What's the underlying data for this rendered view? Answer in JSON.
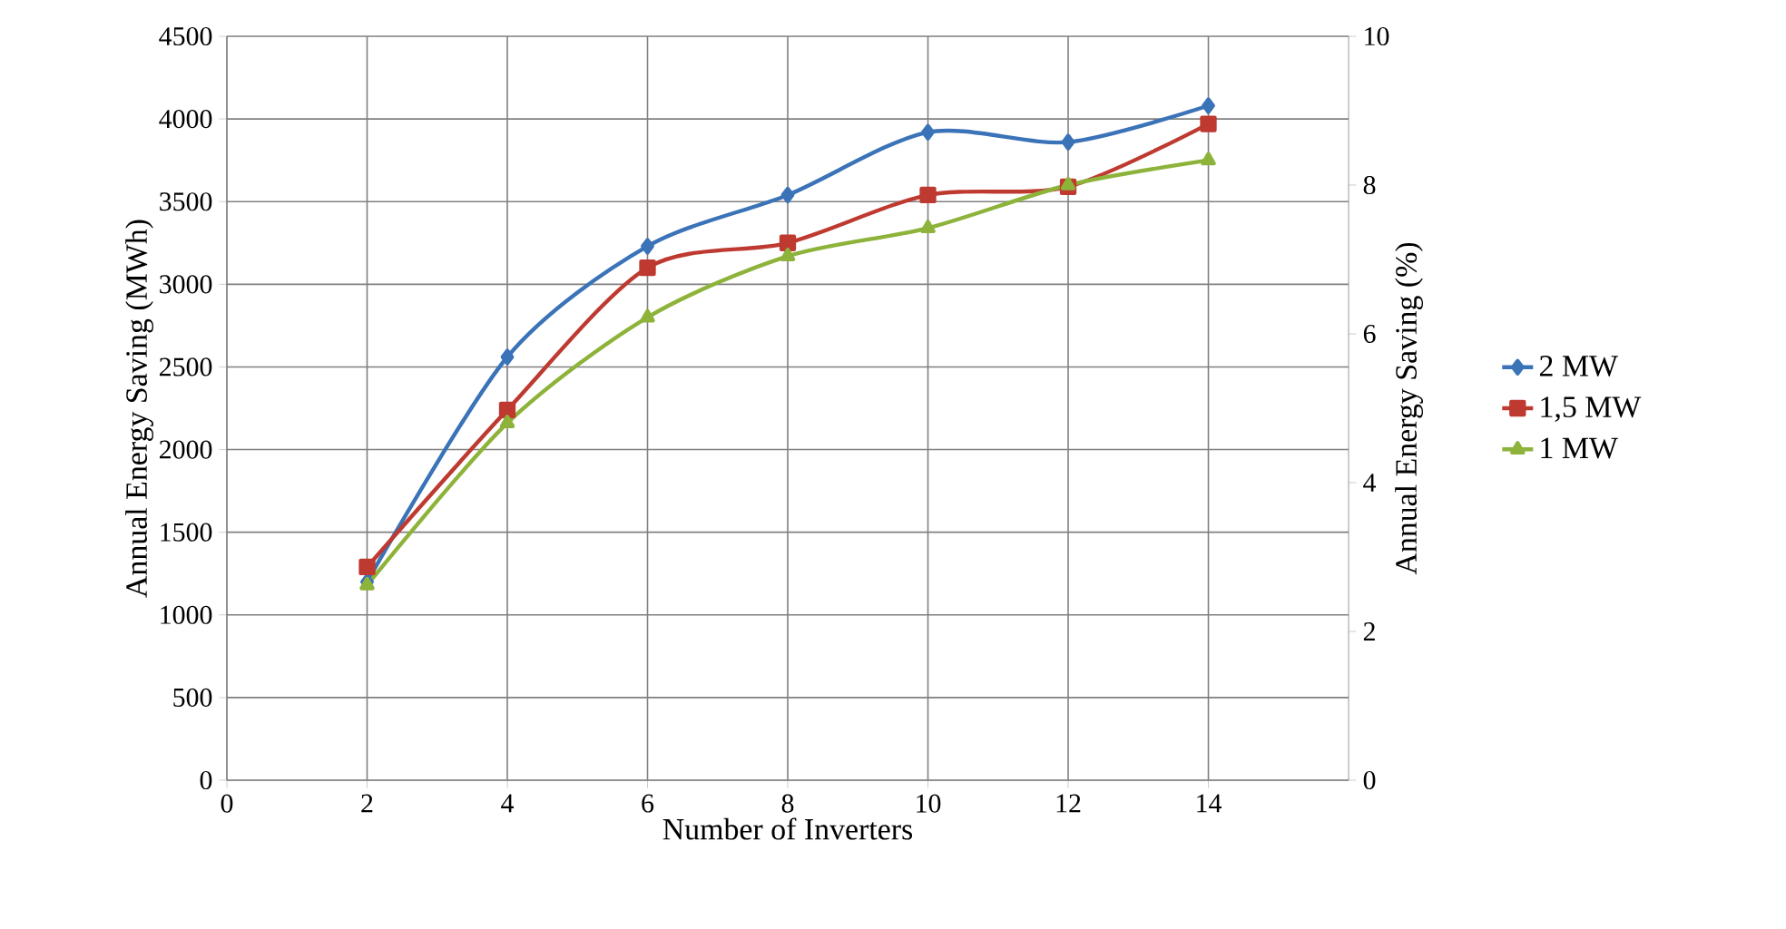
{
  "chart_data": {
    "type": "line",
    "xlabel": "Number of Inverters",
    "ylabel": "Annual Energy Saving (MWh)",
    "y2label": "Annual Energy Saving (%)",
    "x": [
      2,
      4,
      6,
      8,
      10,
      12,
      14
    ],
    "series": [
      {
        "name": "2 MW",
        "color": "#3a73b8",
        "marker": "diamond",
        "values": [
          1200,
          2560,
          3230,
          3540,
          3920,
          3860,
          4080
        ]
      },
      {
        "name": "1,5 MW",
        "color": "#be3a31",
        "marker": "square",
        "values": [
          1290,
          2240,
          3100,
          3250,
          3540,
          3590,
          3970
        ]
      },
      {
        "name": "1 MW",
        "color": "#8db33a",
        "marker": "triangle",
        "values": [
          1180,
          2160,
          2800,
          3170,
          3340,
          3600,
          3750
        ]
      }
    ],
    "xlim": [
      0,
      16
    ],
    "xticks": [
      0,
      2,
      4,
      6,
      8,
      10,
      12,
      14
    ],
    "ylim": [
      0,
      4500
    ],
    "yticks": [
      0,
      500,
      1000,
      1500,
      2000,
      2500,
      3000,
      3500,
      4000,
      4500
    ],
    "y2lim": [
      0,
      10
    ],
    "y2ticks": [
      0,
      2,
      4,
      6,
      8,
      10
    ],
    "grid": true,
    "legend": "right",
    "line_style": "solid"
  }
}
